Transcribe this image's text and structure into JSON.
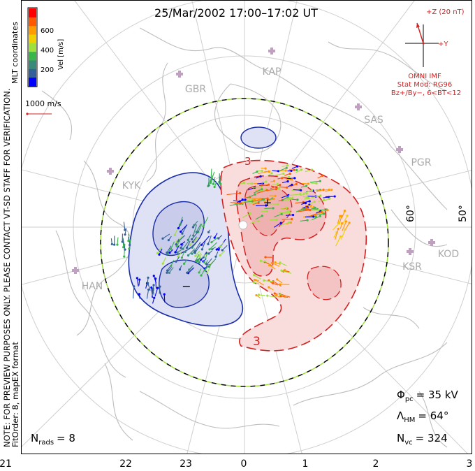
{
  "title": "25/Mar/2002 17:00–17:02 UT",
  "colorbar": {
    "label": "Vel [m/s]",
    "ticks": [
      "600",
      "400",
      "200"
    ],
    "colors": [
      "#ff0000",
      "#ff5a00",
      "#ff9c00",
      "#f0d000",
      "#9fe03c",
      "#39b54a",
      "#3a8a7a",
      "#34609a",
      "#0000ff"
    ]
  },
  "coord_label": "MLT coordinates",
  "scale_vector": "1000 m/s",
  "preview_note": "NOTE: FOR PREVIEW PURPOSES ONLY. PLEASE CONTACT VT-SD STAFF FOR VERIFICATION.",
  "fit_note": "FitOrder: 8, mapEX format",
  "imf": {
    "z_label": "+Z (20 nT)",
    "y_label": "+Y",
    "source": "OMNI IMF",
    "model": "Stat Mod: RG96",
    "condition": "Bz+/By−, 6<BT<12"
  },
  "stations": [
    "KAP",
    "GBR",
    "SAS",
    "PGR",
    "KYK",
    "HAN",
    "KSR",
    "KOD"
  ],
  "latitude_labels": [
    "60°",
    "50°"
  ],
  "potential_markers": {
    "plus": "+",
    "minus": "−"
  },
  "contour_labels": [
    "3",
    "3"
  ],
  "stats": {
    "phi_label": "Φ",
    "phi_sub": "pc",
    "phi_value": "= 35 kV",
    "lambda_label": "Λ",
    "lambda_sub": "HM",
    "lambda_value": "= 64°",
    "nvc_label": "N",
    "nvc_sub": "vc",
    "nvc_value": "= 324",
    "nrads_label": "N",
    "nrads_sub": "rads",
    "nrads_value": "= 8"
  },
  "mlt_ticks": [
    "21",
    "22",
    "23",
    "0",
    "1",
    "2",
    "3"
  ]
}
